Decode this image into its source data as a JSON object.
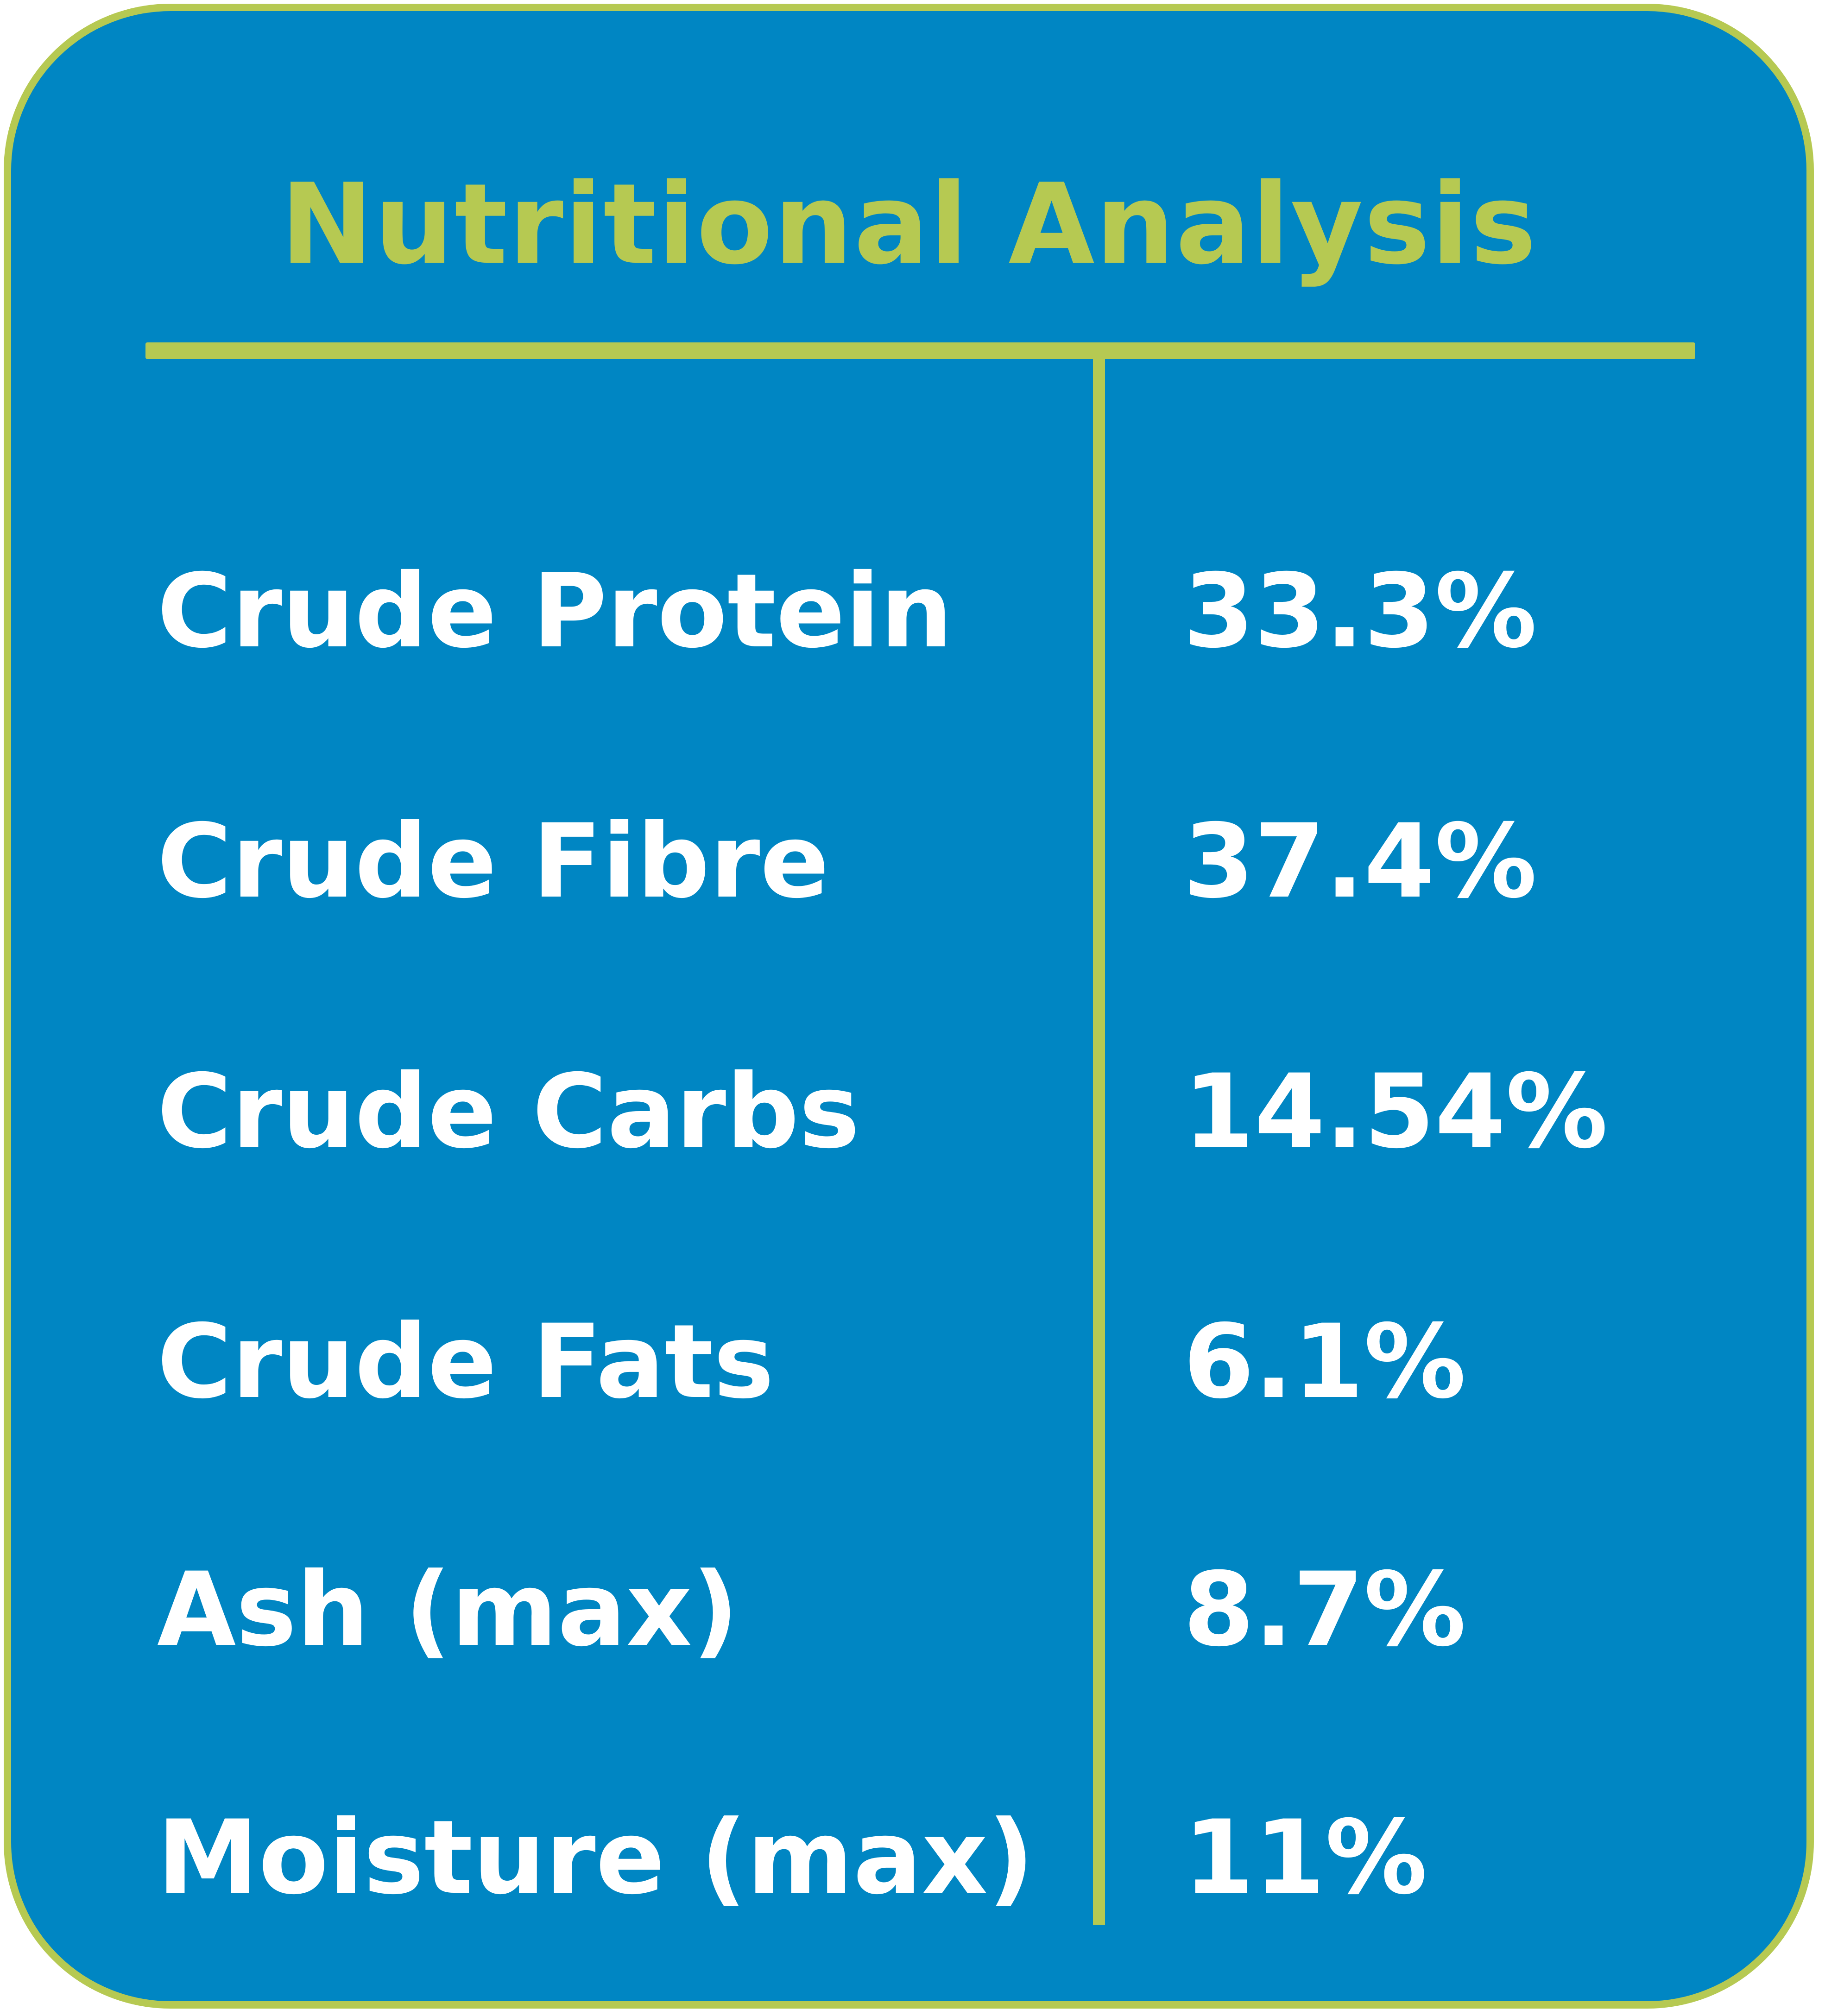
{
  "title": "Nutritional Analysis",
  "colors": {
    "background": "#0086c3",
    "accent": "#b6c952",
    "text": "#ffffff"
  },
  "rows": [
    {
      "label": "Crude Protein",
      "value": "33.3%"
    },
    {
      "label": "Crude Fibre",
      "value": "37.4%"
    },
    {
      "label": "Crude Carbs",
      "value": "14.54%"
    },
    {
      "label": "Crude Fats",
      "value": "6.1%"
    },
    {
      "label": "Ash (max)",
      "value": "8.7%"
    },
    {
      "label": "Moisture (max)",
      "value": "11%"
    }
  ]
}
